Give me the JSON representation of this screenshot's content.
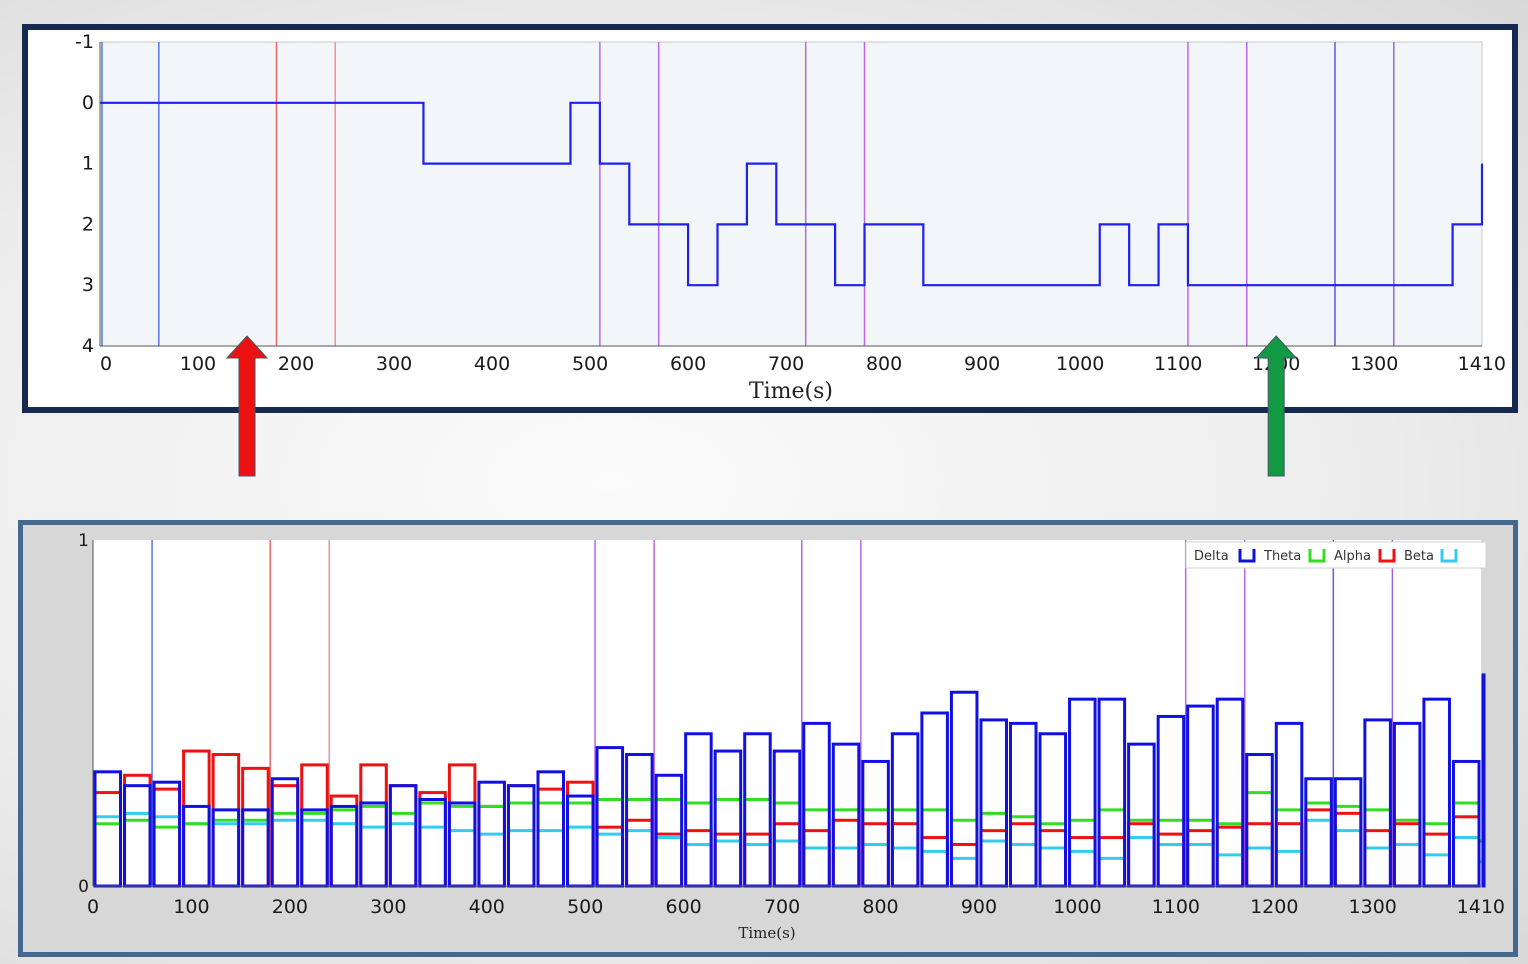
{
  "colors": {
    "top_border": "#16294f",
    "bottom_border": "#44698f",
    "stage_line": "#2020ee",
    "delta": "#1010e0",
    "theta": "#33dd22",
    "alpha": "#ee1111",
    "beta": "#33ccee",
    "marker_blue": "#5577ee",
    "marker_red": "#ee6666",
    "marker_pink": "#f09090",
    "marker_violet": "#bb66ee",
    "marker_purple": "#9966dd",
    "marker_indigo": "#6655dd",
    "arrow_red": "#ee1111",
    "arrow_green": "#119944"
  },
  "arrows": [
    {
      "name": "red-arrow",
      "color": "#ee1111",
      "x_time": 150
    },
    {
      "name": "green-arrow",
      "color": "#119944",
      "x_time": 1200
    }
  ],
  "chart_data": [
    {
      "type": "line",
      "subtype": "step",
      "title": "",
      "xlabel": "Time(s)",
      "ylabel": "",
      "xlim": [
        0,
        1410
      ],
      "ylim": [
        -1,
        4
      ],
      "y_inverted": true,
      "x_ticks": [
        "0",
        "100",
        "200",
        "300",
        "400",
        "500",
        "600",
        "700",
        "800",
        "900",
        "1000",
        "1100",
        "1200",
        "1300",
        "1410"
      ],
      "y_ticks": [
        "-1",
        "0",
        "1",
        "2",
        "3",
        "4"
      ],
      "step_times": [
        0,
        330,
        480,
        510,
        540,
        600,
        630,
        660,
        690,
        750,
        780,
        840,
        1020,
        1050,
        1080,
        1110,
        1380,
        1410
      ],
      "step_values": [
        0,
        1,
        0,
        1,
        2,
        3,
        2,
        1,
        2,
        3,
        2,
        3,
        2,
        3,
        2,
        3,
        2,
        1
      ],
      "markers": [
        {
          "t": 2,
          "color": "marker_blue"
        },
        {
          "t": 60,
          "color": "marker_blue"
        },
        {
          "t": 180,
          "color": "marker_red"
        },
        {
          "t": 240,
          "color": "marker_pink"
        },
        {
          "t": 510,
          "color": "marker_violet"
        },
        {
          "t": 570,
          "color": "marker_violet"
        },
        {
          "t": 720,
          "color": "marker_violet"
        },
        {
          "t": 780,
          "color": "marker_violet"
        },
        {
          "t": 1110,
          "color": "marker_violet"
        },
        {
          "t": 1170,
          "color": "marker_violet"
        },
        {
          "t": 1260,
          "color": "marker_indigo"
        },
        {
          "t": 1320,
          "color": "marker_purple"
        }
      ]
    },
    {
      "type": "bar",
      "title": "",
      "xlabel": "Time(s)",
      "ylabel": "",
      "xlim": [
        0,
        1410
      ],
      "ylim": [
        0,
        1
      ],
      "x_ticks": [
        "0",
        "100",
        "200",
        "300",
        "400",
        "500",
        "600",
        "700",
        "800",
        "900",
        "1000",
        "1100",
        "1200",
        "1300",
        "1410"
      ],
      "y_ticks": [
        "0",
        "1"
      ],
      "bin_width": 30,
      "legend": [
        "Delta",
        "Theta",
        "Alpha",
        "Beta"
      ],
      "legend_position": "top-right",
      "series": [
        {
          "name": "Delta",
          "color": "delta",
          "style": "hollow-bar",
          "values": [
            0.33,
            0.29,
            0.3,
            0.23,
            0.22,
            0.22,
            0.31,
            0.22,
            0.23,
            0.24,
            0.29,
            0.25,
            0.24,
            0.3,
            0.29,
            0.33,
            0.26,
            0.4,
            0.38,
            0.32,
            0.44,
            0.39,
            0.44,
            0.39,
            0.47,
            0.41,
            0.36,
            0.44,
            0.5,
            0.56,
            0.48,
            0.47,
            0.44,
            0.54,
            0.54,
            0.41,
            0.49,
            0.52,
            0.54,
            0.38,
            0.47,
            0.31,
            0.31,
            0.48,
            0.47,
            0.54,
            0.36,
            0.61
          ]
        },
        {
          "name": "Theta",
          "color": "theta",
          "style": "level",
          "values": [
            0.18,
            0.19,
            0.17,
            0.18,
            0.19,
            0.19,
            0.21,
            0.21,
            0.22,
            0.23,
            0.21,
            0.24,
            0.23,
            0.23,
            0.24,
            0.24,
            0.24,
            0.25,
            0.25,
            0.25,
            0.24,
            0.25,
            0.25,
            0.24,
            0.22,
            0.22,
            0.22,
            0.22,
            0.22,
            0.19,
            0.21,
            0.2,
            0.18,
            0.19,
            0.22,
            0.19,
            0.19,
            0.19,
            0.18,
            0.27,
            0.22,
            0.24,
            0.23,
            0.22,
            0.19,
            0.18,
            0.24,
            0.13
          ]
        },
        {
          "name": "Alpha",
          "color": "alpha",
          "style": "hollow-bar",
          "values": [
            0.27,
            0.32,
            0.28,
            0.39,
            0.38,
            0.34,
            0.29,
            0.35,
            0.26,
            0.35,
            0.29,
            0.27,
            0.35,
            0.23,
            0.29,
            0.28,
            0.3,
            0.17,
            0.19,
            0.15,
            0.16,
            0.15,
            0.15,
            0.18,
            0.16,
            0.19,
            0.18,
            0.18,
            0.14,
            0.12,
            0.16,
            0.18,
            0.16,
            0.14,
            0.14,
            0.18,
            0.15,
            0.16,
            0.17,
            0.18,
            0.18,
            0.22,
            0.21,
            0.16,
            0.18,
            0.15,
            0.2,
            0.12
          ]
        },
        {
          "name": "Beta",
          "color": "beta",
          "style": "level",
          "values": [
            0.2,
            0.21,
            0.2,
            0.18,
            0.18,
            0.18,
            0.19,
            0.19,
            0.18,
            0.17,
            0.18,
            0.17,
            0.16,
            0.15,
            0.16,
            0.16,
            0.17,
            0.15,
            0.16,
            0.14,
            0.12,
            0.13,
            0.12,
            0.13,
            0.11,
            0.11,
            0.12,
            0.11,
            0.1,
            0.08,
            0.13,
            0.12,
            0.11,
            0.1,
            0.08,
            0.14,
            0.12,
            0.12,
            0.09,
            0.11,
            0.1,
            0.19,
            0.16,
            0.11,
            0.12,
            0.09,
            0.14,
            0.07
          ]
        }
      ],
      "markers": [
        {
          "t": 60,
          "color": "marker_blue"
        },
        {
          "t": 180,
          "color": "marker_red"
        },
        {
          "t": 240,
          "color": "marker_pink"
        },
        {
          "t": 510,
          "color": "marker_violet"
        },
        {
          "t": 570,
          "color": "marker_violet"
        },
        {
          "t": 720,
          "color": "marker_violet"
        },
        {
          "t": 780,
          "color": "marker_violet"
        },
        {
          "t": 1110,
          "color": "marker_violet"
        },
        {
          "t": 1170,
          "color": "marker_violet"
        },
        {
          "t": 1260,
          "color": "marker_indigo"
        },
        {
          "t": 1320,
          "color": "marker_purple"
        }
      ]
    }
  ]
}
